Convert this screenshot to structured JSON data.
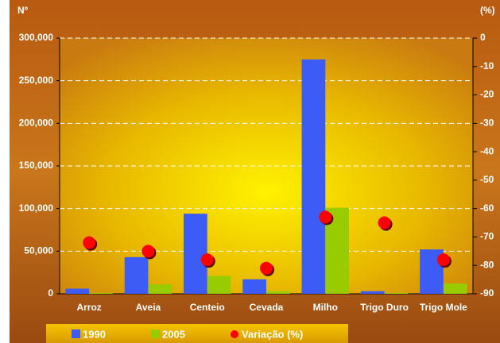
{
  "chart_data": {
    "type": "bar",
    "ylabel": "Nº",
    "y2label": "(%)",
    "categories": [
      "Arroz",
      "Aveia",
      "Centeio",
      "Cevada",
      "Milho",
      "Trigo Duro",
      "Trigo Mole"
    ],
    "series": [
      {
        "name": "1990",
        "color": "#3d5cf5",
        "values": [
          6000,
          43000,
          94000,
          17000,
          275000,
          3000,
          52000
        ]
      },
      {
        "name": "2005",
        "color": "#99cc00",
        "values": [
          1000,
          11000,
          21000,
          3000,
          101000,
          1000,
          12000
        ]
      },
      {
        "name": "Variação (%)",
        "color": "#ff0000",
        "axis": "y2",
        "values": [
          -72,
          -75,
          -78,
          -81,
          -63,
          -65,
          -78
        ]
      }
    ],
    "ylim": [
      0,
      300000
    ],
    "yticks": [
      0,
      {
        "value": 50000,
        "label": "50,000"
      },
      {
        "value": 100000,
        "label": "100,000"
      },
      {
        "value": 150000,
        "label": "150,000"
      },
      {
        "value": 200000,
        "label": "200,000"
      },
      {
        "value": 250000,
        "label": "250,000"
      },
      {
        "value": 300000,
        "label": "300,000"
      }
    ],
    "y2lim": [
      -90,
      0
    ],
    "y2ticks": [
      0,
      -10,
      -20,
      -30,
      -40,
      -50,
      -60,
      -70,
      -80,
      -90
    ],
    "grid": true
  }
}
